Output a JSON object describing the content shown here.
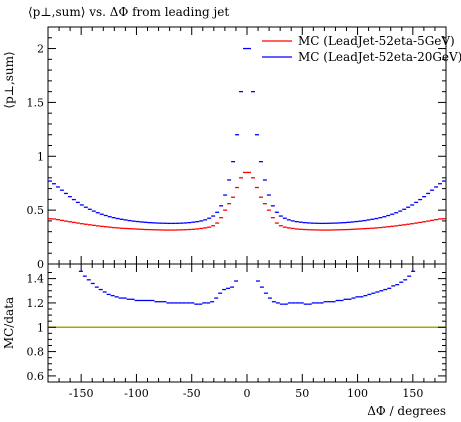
{
  "chart_data": [
    {
      "type": "scatter",
      "title": "⟨p⊥,sum⟩ vs. ΔΦ from leading jet",
      "xlabel": "",
      "ylabel": "⟨p⊥,sum⟩",
      "xlim": [
        -180,
        180
      ],
      "ylim": [
        0,
        2.2
      ],
      "yticks": [
        0,
        0.5,
        1,
        1.5,
        2
      ],
      "ytick_labels": [
        "0",
        "0.5",
        "1",
        "1.5",
        "2"
      ],
      "legend_position": "top-right",
      "bin_width": 3.6,
      "series": [
        {
          "name": "MC (LeadJet-52eta-5GeV)",
          "color": "#ff0000",
          "x": [
            -178.2,
            -174.6,
            -171,
            -167.4,
            -163.8,
            -160.2,
            -156.6,
            -153,
            -149.4,
            -145.8,
            -142.2,
            -138.6,
            -135,
            -131.4,
            -127.8,
            -124.2,
            -120.6,
            -117,
            -113.4,
            -109.8,
            -106.2,
            -102.6,
            -99,
            -95.4,
            -91.8,
            -88.2,
            -84.6,
            -81,
            -77.4,
            -73.8,
            -70.2,
            -66.6,
            -63,
            -59.4,
            -55.8,
            -52.2,
            -48.6,
            -45,
            -41.4,
            -37.8,
            -34.2,
            -30.6,
            -27,
            -23.4,
            -19.8,
            -16.2,
            -12.6,
            -9,
            -5.4,
            -1.8,
            1.8,
            5.4,
            9,
            12.6,
            16.2,
            19.8,
            23.4,
            27,
            30.6,
            34.2,
            37.8,
            41.4,
            45,
            48.6,
            52.2,
            55.8,
            59.4,
            63,
            66.6,
            70.2,
            73.8,
            77.4,
            81,
            84.6,
            88.2,
            91.8,
            95.4,
            99,
            102.6,
            106.2,
            109.8,
            113.4,
            117,
            120.6,
            124.2,
            127.8,
            131.4,
            135,
            138.6,
            142.2,
            145.8,
            149.4,
            153,
            156.6,
            160.2,
            163.8,
            167.4,
            171,
            174.6,
            178.2
          ],
          "y": [
            0.42,
            0.418,
            0.412,
            0.405,
            0.398,
            0.392,
            0.386,
            0.38,
            0.374,
            0.369,
            0.364,
            0.359,
            0.354,
            0.35,
            0.346,
            0.342,
            0.338,
            0.335,
            0.332,
            0.33,
            0.328,
            0.326,
            0.324,
            0.322,
            0.32,
            0.319,
            0.318,
            0.317,
            0.316,
            0.315,
            0.315,
            0.315,
            0.316,
            0.317,
            0.318,
            0.32,
            0.322,
            0.325,
            0.33,
            0.335,
            0.342,
            0.355,
            0.38,
            0.43,
            0.5,
            0.56,
            0.62,
            0.71,
            0.8,
            0.85,
            0.85,
            0.8,
            0.71,
            0.62,
            0.56,
            0.5,
            0.43,
            0.38,
            0.355,
            0.342,
            0.335,
            0.33,
            0.325,
            0.322,
            0.32,
            0.318,
            0.317,
            0.316,
            0.315,
            0.315,
            0.315,
            0.316,
            0.317,
            0.318,
            0.319,
            0.32,
            0.322,
            0.324,
            0.326,
            0.328,
            0.33,
            0.332,
            0.335,
            0.338,
            0.342,
            0.346,
            0.35,
            0.354,
            0.359,
            0.364,
            0.369,
            0.374,
            0.38,
            0.386,
            0.392,
            0.398,
            0.405,
            0.412,
            0.418,
            0.42
          ]
        },
        {
          "name": "MC (LeadJet-52eta-20GeV)",
          "color": "#0000ff",
          "x": [
            -178.2,
            -174.6,
            -171,
            -167.4,
            -163.8,
            -160.2,
            -156.6,
            -153,
            -149.4,
            -145.8,
            -142.2,
            -138.6,
            -135,
            -131.4,
            -127.8,
            -124.2,
            -120.6,
            -117,
            -113.4,
            -109.8,
            -106.2,
            -102.6,
            -99,
            -95.4,
            -91.8,
            -88.2,
            -84.6,
            -81,
            -77.4,
            -73.8,
            -70.2,
            -66.6,
            -63,
            -59.4,
            -55.8,
            -52.2,
            -48.6,
            -45,
            -41.4,
            -37.8,
            -34.2,
            -30.6,
            -27,
            -23.4,
            -19.8,
            -16.2,
            -12.6,
            -9,
            -5.4,
            -1.8,
            1.8,
            5.4,
            9,
            12.6,
            16.2,
            19.8,
            23.4,
            27,
            30.6,
            34.2,
            37.8,
            41.4,
            45,
            48.6,
            52.2,
            55.8,
            59.4,
            63,
            66.6,
            70.2,
            73.8,
            77.4,
            81,
            84.6,
            88.2,
            91.8,
            95.4,
            99,
            102.6,
            106.2,
            109.8,
            113.4,
            117,
            120.6,
            124.2,
            127.8,
            131.4,
            135,
            138.6,
            142.2,
            145.8,
            149.4,
            153,
            156.6,
            160.2,
            163.8,
            167.4,
            171,
            174.6,
            178.2
          ],
          "y": [
            0.77,
            0.745,
            0.715,
            0.685,
            0.655,
            0.625,
            0.598,
            0.572,
            0.548,
            0.527,
            0.508,
            0.491,
            0.476,
            0.462,
            0.45,
            0.439,
            0.43,
            0.422,
            0.415,
            0.409,
            0.403,
            0.398,
            0.394,
            0.39,
            0.387,
            0.384,
            0.382,
            0.38,
            0.379,
            0.378,
            0.377,
            0.377,
            0.378,
            0.379,
            0.381,
            0.384,
            0.388,
            0.393,
            0.4,
            0.41,
            0.425,
            0.445,
            0.48,
            0.54,
            0.64,
            0.78,
            0.95,
            1.2,
            1.6,
            2.0,
            2.0,
            1.6,
            1.2,
            0.95,
            0.78,
            0.64,
            0.54,
            0.48,
            0.445,
            0.425,
            0.41,
            0.4,
            0.393,
            0.388,
            0.384,
            0.381,
            0.379,
            0.378,
            0.377,
            0.377,
            0.378,
            0.379,
            0.38,
            0.382,
            0.384,
            0.387,
            0.39,
            0.394,
            0.398,
            0.403,
            0.409,
            0.415,
            0.422,
            0.43,
            0.439,
            0.45,
            0.462,
            0.476,
            0.491,
            0.508,
            0.527,
            0.548,
            0.572,
            0.598,
            0.625,
            0.655,
            0.685,
            0.715,
            0.745,
            0.77
          ]
        }
      ]
    },
    {
      "type": "scatter",
      "title": "",
      "xlabel": "ΔΦ / degrees",
      "ylabel": "MC/data",
      "xlim": [
        -180,
        180
      ],
      "ylim": [
        0.55,
        1.52
      ],
      "xticks": [
        -150,
        -100,
        -50,
        0,
        50,
        100,
        150
      ],
      "xtick_labels": [
        "-150",
        "-100",
        "-50",
        "0",
        "50",
        "100",
        "150"
      ],
      "yticks": [
        0.6,
        0.8,
        1,
        1.2,
        1.4
      ],
      "ytick_labels": [
        "0.6",
        "0.8",
        "1",
        "1.2",
        "1.4"
      ],
      "reference_line": {
        "y": 1,
        "color": "#a8a800"
      },
      "bin_width": 3.6,
      "series": [
        {
          "color": "#0000ff",
          "x": [
            -150.3,
            -146.7,
            -143.1,
            -139.5,
            -135.9,
            -132.3,
            -128.7,
            -125.1,
            -121.5,
            -117.9,
            -114.3,
            -110.7,
            -107.1,
            -103.5,
            -99.9,
            -96.3,
            -92.7,
            -89.1,
            -85.5,
            -81.9,
            -78.3,
            -74.7,
            -71.1,
            -67.5,
            -63.9,
            -60.3,
            -56.7,
            -53.1,
            -49.5,
            -45.9,
            -42.3,
            -38.7,
            -35.1,
            -31.5,
            -27.9,
            -24.3,
            -20.7,
            -17.1,
            -13.5,
            -9.9,
            9.9,
            13.5,
            17.1,
            20.7,
            24.3,
            27.9,
            31.5,
            35.1,
            38.7,
            42.3,
            45.9,
            49.5,
            53.1,
            56.7,
            60.3,
            63.9,
            67.5,
            71.1,
            74.7,
            78.3,
            81.9,
            85.5,
            89.1,
            92.7,
            96.3,
            99.9,
            103.5,
            107.1,
            110.7,
            114.3,
            117.9,
            121.5,
            125.1,
            128.7,
            132.3,
            135.9,
            139.5,
            143.1,
            146.7,
            150.3
          ],
          "y": [
            1.46,
            1.42,
            1.39,
            1.36,
            1.33,
            1.31,
            1.29,
            1.27,
            1.26,
            1.25,
            1.24,
            1.24,
            1.23,
            1.23,
            1.22,
            1.22,
            1.22,
            1.22,
            1.22,
            1.21,
            1.21,
            1.21,
            1.2,
            1.2,
            1.2,
            1.2,
            1.2,
            1.2,
            1.2,
            1.19,
            1.19,
            1.2,
            1.2,
            1.21,
            1.24,
            1.28,
            1.31,
            1.32,
            1.33,
            1.38,
            1.38,
            1.33,
            1.28,
            1.24,
            1.21,
            1.2,
            1.19,
            1.19,
            1.2,
            1.2,
            1.2,
            1.2,
            1.19,
            1.19,
            1.2,
            1.2,
            1.2,
            1.21,
            1.21,
            1.21,
            1.22,
            1.22,
            1.23,
            1.23,
            1.24,
            1.25,
            1.25,
            1.26,
            1.27,
            1.28,
            1.29,
            1.3,
            1.31,
            1.32,
            1.34,
            1.35,
            1.37,
            1.39,
            1.42,
            1.46
          ]
        }
      ]
    }
  ]
}
